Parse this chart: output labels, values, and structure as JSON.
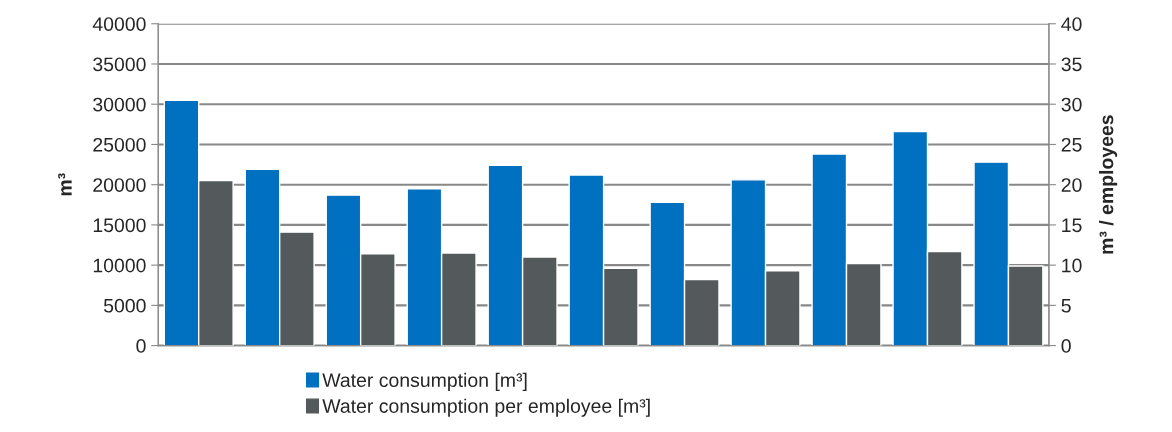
{
  "chart_data": {
    "type": "bar",
    "categories": [
      null,
      null,
      null,
      null,
      null,
      null,
      null,
      null,
      null,
      null,
      null
    ],
    "series": [
      {
        "name": "Water consumption [m³]",
        "color": "#0070c0",
        "values": [
          30500,
          21900,
          18700,
          19500,
          22400,
          21200,
          17800,
          20600,
          23800,
          26600,
          22800
        ]
      },
      {
        "name": "Water consumption per employee [m³]",
        "color": "#54595b",
        "axis": "y2",
        "values": [
          20.5,
          14.1,
          11.4,
          11.5,
          11.0,
          9.6,
          8.2,
          9.3,
          10.2,
          11.7,
          9.9
        ]
      }
    ],
    "ylabel": "m³",
    "y2label": "m³ / employees",
    "ylim": [
      0,
      40000
    ],
    "yticks": [
      0,
      5000,
      10000,
      15000,
      20000,
      25000,
      30000,
      35000,
      40000
    ],
    "y2lim": [
      0,
      40
    ],
    "y2ticks": [
      0,
      5,
      10,
      15,
      20,
      25,
      30,
      35,
      40
    ],
    "grid": "y",
    "legend": "bottom"
  }
}
